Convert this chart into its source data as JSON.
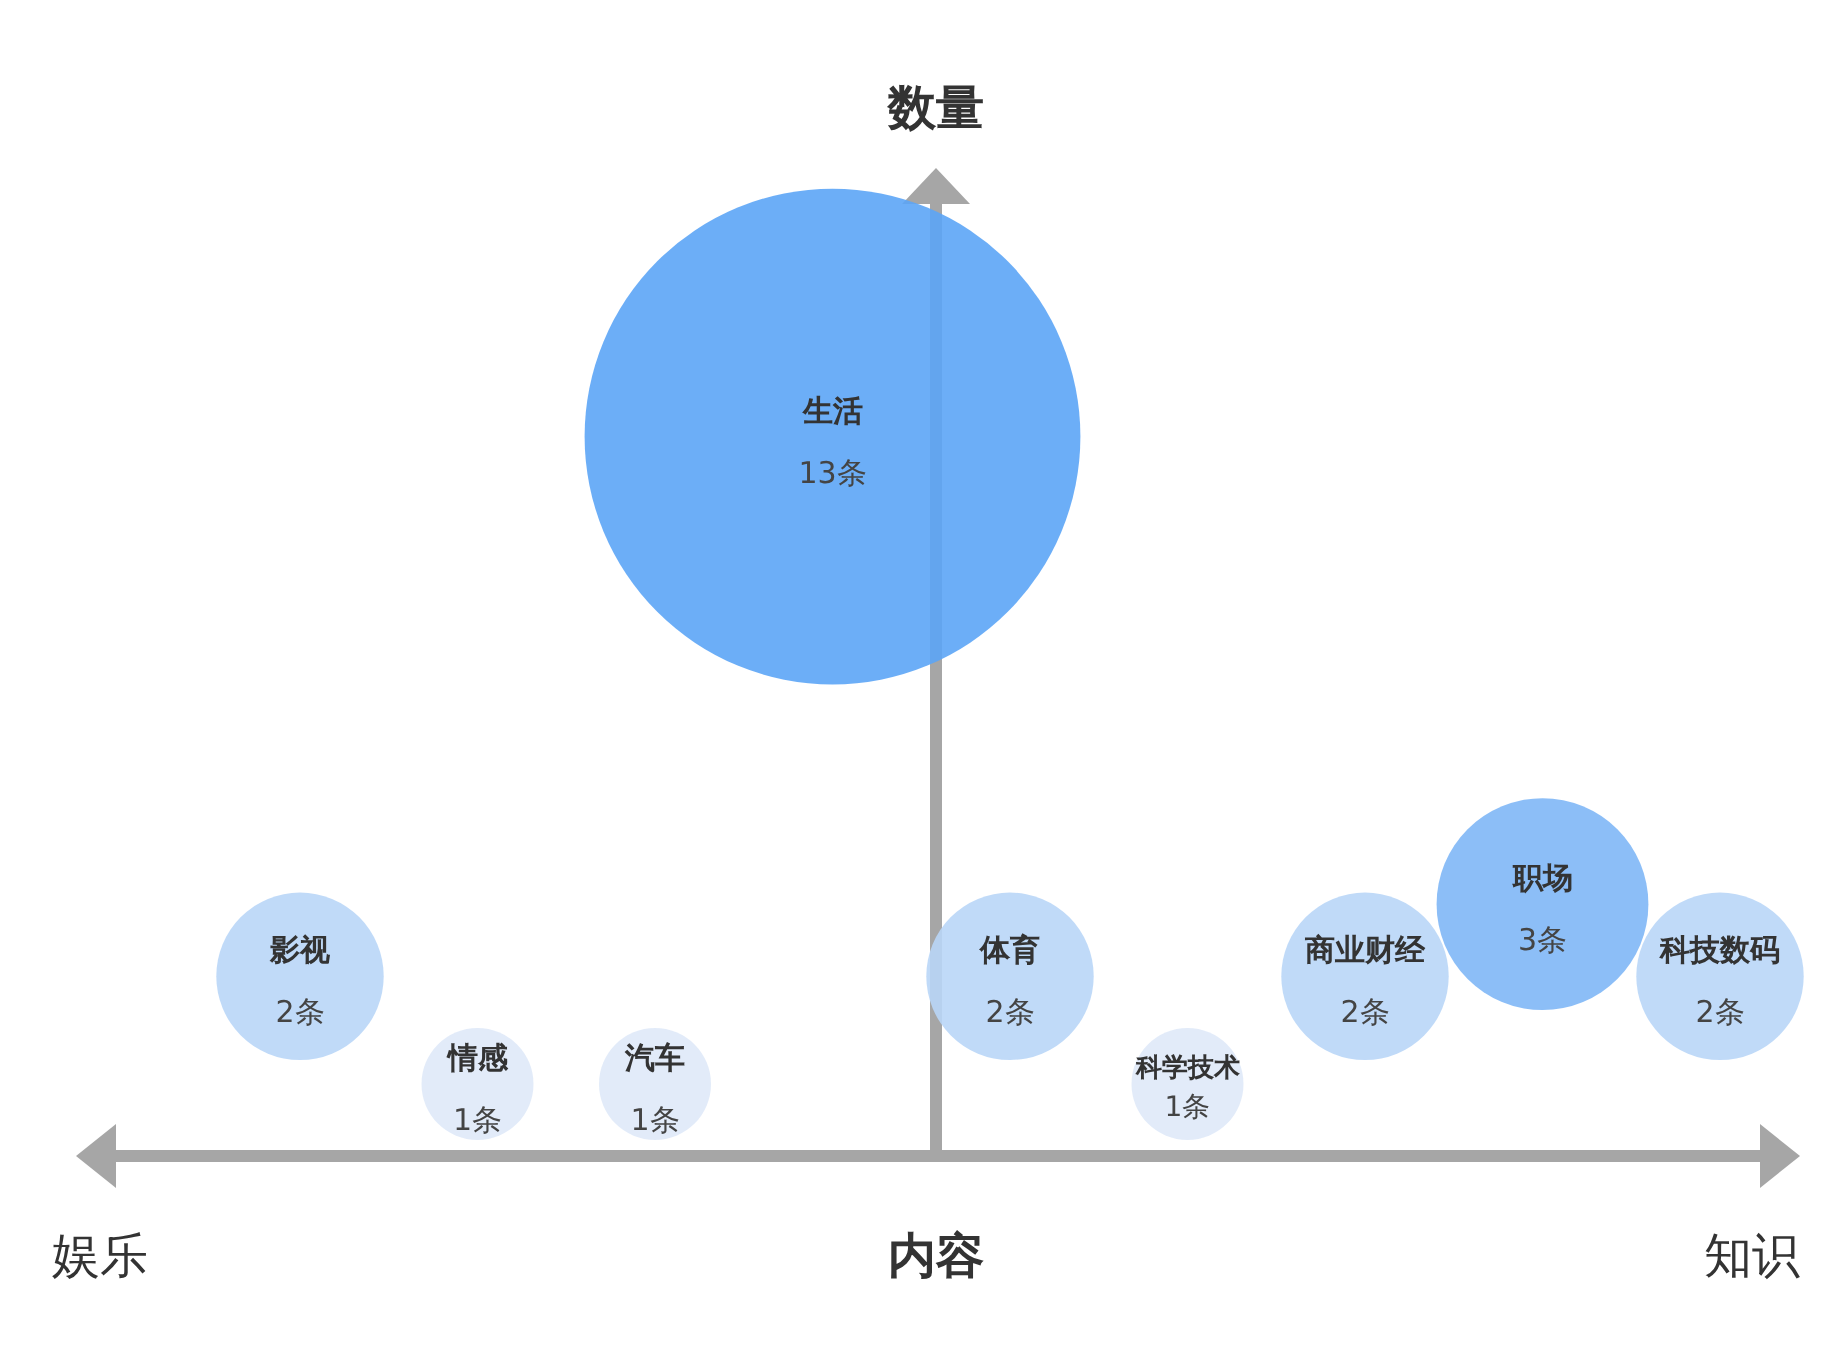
{
  "chart_data": {
    "type": "other",
    "xlabel": "内容",
    "ylabel": "数量",
    "annotations": [
      "娱乐",
      "知识"
    ],
    "categories": [
      "影视",
      "情感",
      "汽车",
      "生活",
      "体育",
      "科学技术",
      "商业财经",
      "职场",
      "科技数码"
    ],
    "values": [
      2,
      1,
      1,
      13,
      2,
      1,
      2,
      3,
      2
    ],
    "value_labels": [
      "2条",
      "1条",
      "1条",
      "13条",
      "2条",
      "1条",
      "2条",
      "3条",
      "2条"
    ],
    "colors": [
      "#b9d6f7",
      "#dfe9f8",
      "#dfe9f8",
      "#5ca5f6",
      "#b9d6f7",
      "#dfe9f8",
      "#b9d6f7",
      "#7fb7f6",
      "#b9d6f7"
    ]
  }
}
